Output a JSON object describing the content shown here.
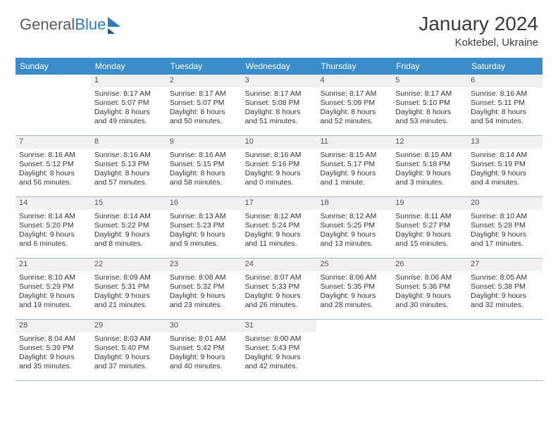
{
  "logo": {
    "part1": "General",
    "part2": "Blue"
  },
  "header": {
    "month": "January 2024",
    "location": "Koktebel, Ukraine"
  },
  "dayNames": [
    "Sunday",
    "Monday",
    "Tuesday",
    "Wednesday",
    "Thursday",
    "Friday",
    "Saturday"
  ],
  "colors": {
    "header_bg": "#3b8ccb",
    "header_text": "#ffffff",
    "daynum_bg": "#f0f0f0",
    "week_border": "#9fb8cc",
    "text": "#333333"
  },
  "weeks": [
    [
      {
        "day": "",
        "sunrise": "",
        "sunset": "",
        "daylight": ""
      },
      {
        "day": "1",
        "sunrise": "Sunrise: 8:17 AM",
        "sunset": "Sunset: 5:07 PM",
        "daylight": "Daylight: 8 hours and 49 minutes."
      },
      {
        "day": "2",
        "sunrise": "Sunrise: 8:17 AM",
        "sunset": "Sunset: 5:07 PM",
        "daylight": "Daylight: 8 hours and 50 minutes."
      },
      {
        "day": "3",
        "sunrise": "Sunrise: 8:17 AM",
        "sunset": "Sunset: 5:08 PM",
        "daylight": "Daylight: 8 hours and 51 minutes."
      },
      {
        "day": "4",
        "sunrise": "Sunrise: 8:17 AM",
        "sunset": "Sunset: 5:09 PM",
        "daylight": "Daylight: 8 hours and 52 minutes."
      },
      {
        "day": "5",
        "sunrise": "Sunrise: 8:17 AM",
        "sunset": "Sunset: 5:10 PM",
        "daylight": "Daylight: 8 hours and 53 minutes."
      },
      {
        "day": "6",
        "sunrise": "Sunrise: 8:16 AM",
        "sunset": "Sunset: 5:11 PM",
        "daylight": "Daylight: 8 hours and 54 minutes."
      }
    ],
    [
      {
        "day": "7",
        "sunrise": "Sunrise: 8:16 AM",
        "sunset": "Sunset: 5:12 PM",
        "daylight": "Daylight: 8 hours and 56 minutes."
      },
      {
        "day": "8",
        "sunrise": "Sunrise: 8:16 AM",
        "sunset": "Sunset: 5:13 PM",
        "daylight": "Daylight: 8 hours and 57 minutes."
      },
      {
        "day": "9",
        "sunrise": "Sunrise: 8:16 AM",
        "sunset": "Sunset: 5:15 PM",
        "daylight": "Daylight: 8 hours and 58 minutes."
      },
      {
        "day": "10",
        "sunrise": "Sunrise: 8:16 AM",
        "sunset": "Sunset: 5:16 PM",
        "daylight": "Daylight: 9 hours and 0 minutes."
      },
      {
        "day": "11",
        "sunrise": "Sunrise: 8:15 AM",
        "sunset": "Sunset: 5:17 PM",
        "daylight": "Daylight: 9 hours and 1 minute."
      },
      {
        "day": "12",
        "sunrise": "Sunrise: 8:15 AM",
        "sunset": "Sunset: 5:18 PM",
        "daylight": "Daylight: 9 hours and 3 minutes."
      },
      {
        "day": "13",
        "sunrise": "Sunrise: 8:14 AM",
        "sunset": "Sunset: 5:19 PM",
        "daylight": "Daylight: 9 hours and 4 minutes."
      }
    ],
    [
      {
        "day": "14",
        "sunrise": "Sunrise: 8:14 AM",
        "sunset": "Sunset: 5:20 PM",
        "daylight": "Daylight: 9 hours and 6 minutes."
      },
      {
        "day": "15",
        "sunrise": "Sunrise: 8:14 AM",
        "sunset": "Sunset: 5:22 PM",
        "daylight": "Daylight: 9 hours and 8 minutes."
      },
      {
        "day": "16",
        "sunrise": "Sunrise: 8:13 AM",
        "sunset": "Sunset: 5:23 PM",
        "daylight": "Daylight: 9 hours and 9 minutes."
      },
      {
        "day": "17",
        "sunrise": "Sunrise: 8:12 AM",
        "sunset": "Sunset: 5:24 PM",
        "daylight": "Daylight: 9 hours and 11 minutes."
      },
      {
        "day": "18",
        "sunrise": "Sunrise: 8:12 AM",
        "sunset": "Sunset: 5:25 PM",
        "daylight": "Daylight: 9 hours and 13 minutes."
      },
      {
        "day": "19",
        "sunrise": "Sunrise: 8:11 AM",
        "sunset": "Sunset: 5:27 PM",
        "daylight": "Daylight: 9 hours and 15 minutes."
      },
      {
        "day": "20",
        "sunrise": "Sunrise: 8:10 AM",
        "sunset": "Sunset: 5:28 PM",
        "daylight": "Daylight: 9 hours and 17 minutes."
      }
    ],
    [
      {
        "day": "21",
        "sunrise": "Sunrise: 8:10 AM",
        "sunset": "Sunset: 5:29 PM",
        "daylight": "Daylight: 9 hours and 19 minutes."
      },
      {
        "day": "22",
        "sunrise": "Sunrise: 8:09 AM",
        "sunset": "Sunset: 5:31 PM",
        "daylight": "Daylight: 9 hours and 21 minutes."
      },
      {
        "day": "23",
        "sunrise": "Sunrise: 8:08 AM",
        "sunset": "Sunset: 5:32 PM",
        "daylight": "Daylight: 9 hours and 23 minutes."
      },
      {
        "day": "24",
        "sunrise": "Sunrise: 8:07 AM",
        "sunset": "Sunset: 5:33 PM",
        "daylight": "Daylight: 9 hours and 26 minutes."
      },
      {
        "day": "25",
        "sunrise": "Sunrise: 8:06 AM",
        "sunset": "Sunset: 5:35 PM",
        "daylight": "Daylight: 9 hours and 28 minutes."
      },
      {
        "day": "26",
        "sunrise": "Sunrise: 8:06 AM",
        "sunset": "Sunset: 5:36 PM",
        "daylight": "Daylight: 9 hours and 30 minutes."
      },
      {
        "day": "27",
        "sunrise": "Sunrise: 8:05 AM",
        "sunset": "Sunset: 5:38 PM",
        "daylight": "Daylight: 9 hours and 32 minutes."
      }
    ],
    [
      {
        "day": "28",
        "sunrise": "Sunrise: 8:04 AM",
        "sunset": "Sunset: 5:39 PM",
        "daylight": "Daylight: 9 hours and 35 minutes."
      },
      {
        "day": "29",
        "sunrise": "Sunrise: 8:03 AM",
        "sunset": "Sunset: 5:40 PM",
        "daylight": "Daylight: 9 hours and 37 minutes."
      },
      {
        "day": "30",
        "sunrise": "Sunrise: 8:01 AM",
        "sunset": "Sunset: 5:42 PM",
        "daylight": "Daylight: 9 hours and 40 minutes."
      },
      {
        "day": "31",
        "sunrise": "Sunrise: 8:00 AM",
        "sunset": "Sunset: 5:43 PM",
        "daylight": "Daylight: 9 hours and 42 minutes."
      },
      {
        "day": "",
        "sunrise": "",
        "sunset": "",
        "daylight": ""
      },
      {
        "day": "",
        "sunrise": "",
        "sunset": "",
        "daylight": ""
      },
      {
        "day": "",
        "sunrise": "",
        "sunset": "",
        "daylight": ""
      }
    ]
  ]
}
